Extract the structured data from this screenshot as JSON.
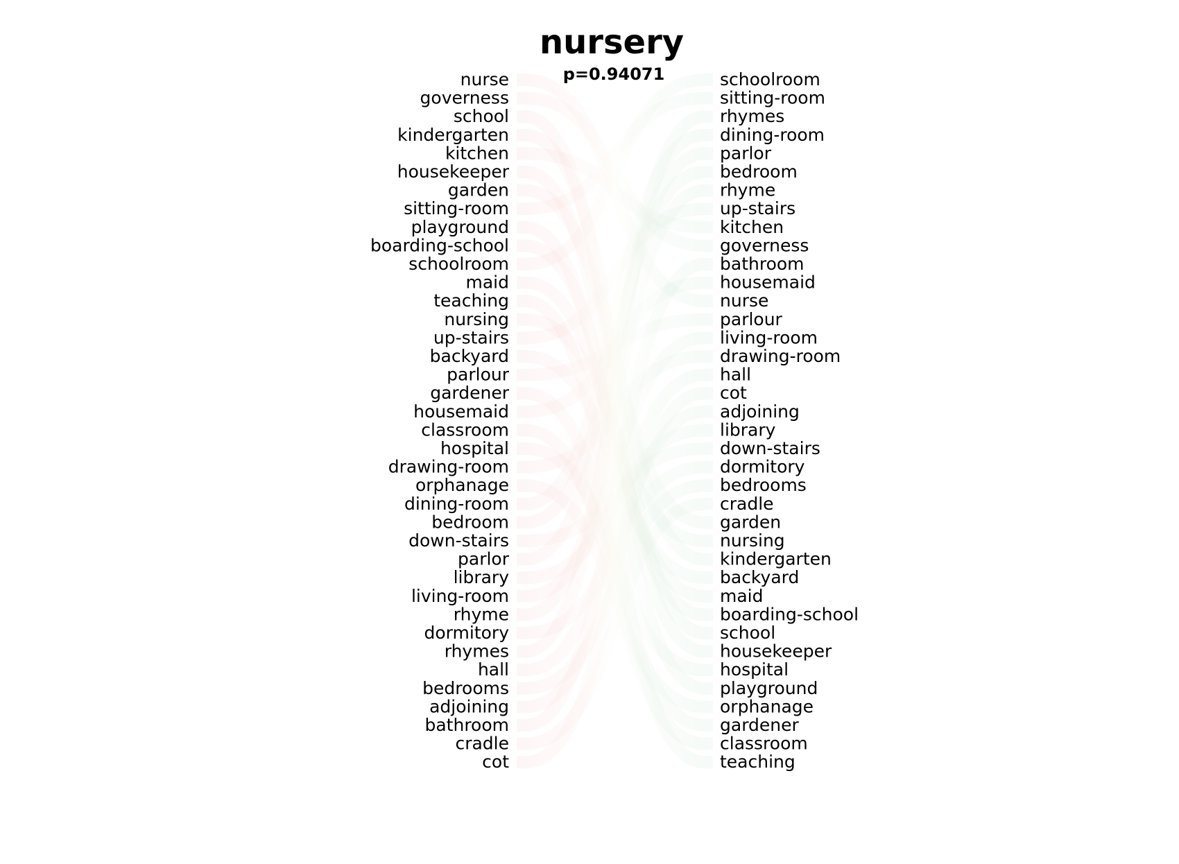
{
  "chart_data": {
    "type": "bump",
    "title": "nursery",
    "subtitle": "p=0.94071",
    "left_ranking": [
      "nurse",
      "governess",
      "school",
      "kindergarten",
      "kitchen",
      "housekeeper",
      "garden",
      "sitting-room",
      "playground",
      "boarding-school",
      "schoolroom",
      "maid",
      "teaching",
      "nursing",
      "up-stairs",
      "backyard",
      "parlour",
      "gardener",
      "housemaid",
      "classroom",
      "hospital",
      "drawing-room",
      "orphanage",
      "dining-room",
      "bedroom",
      "down-stairs",
      "parlor",
      "library",
      "living-room",
      "rhyme",
      "dormitory",
      "rhymes",
      "hall",
      "bedrooms",
      "adjoining",
      "bathroom",
      "cradle",
      "cot"
    ],
    "right_ranking": [
      "schoolroom",
      "sitting-room",
      "rhymes",
      "dining-room",
      "parlor",
      "bedroom",
      "rhyme",
      "up-stairs",
      "kitchen",
      "governess",
      "bathroom",
      "housemaid",
      "nurse",
      "parlour",
      "living-room",
      "drawing-room",
      "hall",
      "cot",
      "adjoining",
      "library",
      "down-stairs",
      "dormitory",
      "bedrooms",
      "cradle",
      "garden",
      "nursing",
      "kindergarten",
      "backyard",
      "maid",
      "boarding-school",
      "school",
      "housekeeper",
      "hospital",
      "playground",
      "orphanage",
      "gardener",
      "classroom",
      "teaching"
    ],
    "colors": {
      "left_band": "#e06060",
      "right_band": "#60b080",
      "text": "#000000"
    },
    "band_opacity": 0.06,
    "grid": false,
    "legend": "none"
  }
}
